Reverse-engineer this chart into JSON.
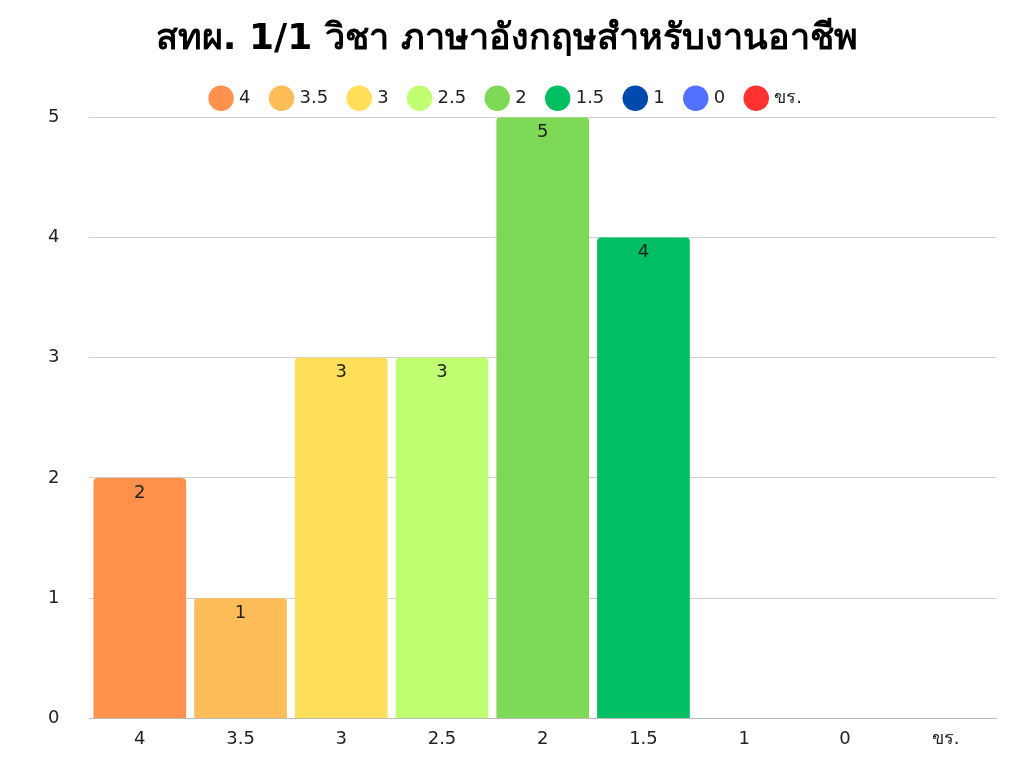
{
  "chart_data": {
    "type": "bar",
    "title": "สทผ. 1/1 วิชา ภาษาอังกฤษสำหรับงานอาชีพ",
    "categories": [
      "4",
      "3.5",
      "3",
      "2.5",
      "2",
      "1.5",
      "1",
      "0",
      "ขร."
    ],
    "series": [
      {
        "name": "4",
        "color": "#ff914d",
        "values": [
          2,
          null,
          null,
          null,
          null,
          null,
          null,
          null,
          null
        ],
        "value_labels": [
          "2",
          null,
          null,
          null,
          null,
          null,
          null,
          null,
          null
        ]
      },
      {
        "name": "3.5",
        "color": "#ffbd59",
        "values": [
          null,
          1,
          null,
          null,
          null,
          null,
          null,
          null,
          null
        ],
        "value_labels": [
          null,
          "1",
          null,
          null,
          null,
          null,
          null,
          null,
          null
        ]
      },
      {
        "name": "3",
        "color": "#ffde59",
        "values": [
          null,
          null,
          3,
          null,
          null,
          null,
          null,
          null,
          null
        ],
        "value_labels": [
          null,
          null,
          "3",
          null,
          null,
          null,
          null,
          null,
          null
        ]
      },
      {
        "name": "2.5",
        "color": "#c1ff72",
        "values": [
          null,
          null,
          null,
          3,
          null,
          null,
          null,
          null,
          null
        ],
        "value_labels": [
          null,
          null,
          null,
          "3",
          null,
          null,
          null,
          null,
          null
        ]
      },
      {
        "name": "2",
        "color": "#7ed957",
        "values": [
          null,
          null,
          null,
          null,
          5,
          null,
          null,
          null,
          null
        ],
        "value_labels": [
          null,
          null,
          null,
          null,
          "5",
          null,
          null,
          null,
          null
        ]
      },
      {
        "name": "1.5",
        "color": "#00bf63",
        "values": [
          null,
          null,
          null,
          null,
          null,
          4,
          null,
          null,
          null
        ],
        "value_labels": [
          null,
          null,
          null,
          null,
          null,
          "4",
          null,
          null,
          null
        ]
      },
      {
        "name": "1",
        "color": "#004aad",
        "values": [
          null,
          null,
          null,
          null,
          null,
          null,
          0,
          null,
          null
        ],
        "value_labels": [
          null,
          null,
          null,
          null,
          null,
          null,
          null,
          null,
          null
        ]
      },
      {
        "name": "0",
        "color": "#5271ff",
        "values": [
          null,
          null,
          null,
          null,
          null,
          null,
          null,
          0,
          null
        ],
        "value_labels": [
          null,
          null,
          null,
          null,
          null,
          null,
          null,
          null,
          null
        ]
      },
      {
        "name": "ขร.",
        "color": "#ff3131",
        "values": [
          null,
          null,
          null,
          null,
          null,
          null,
          null,
          null,
          0
        ],
        "value_labels": [
          null,
          null,
          null,
          null,
          null,
          null,
          null,
          null,
          null
        ]
      }
    ],
    "ylim": [
      0,
      5
    ],
    "yticks": [
      0,
      1,
      2,
      3,
      4,
      5
    ],
    "grid": "y",
    "legend": "top"
  }
}
